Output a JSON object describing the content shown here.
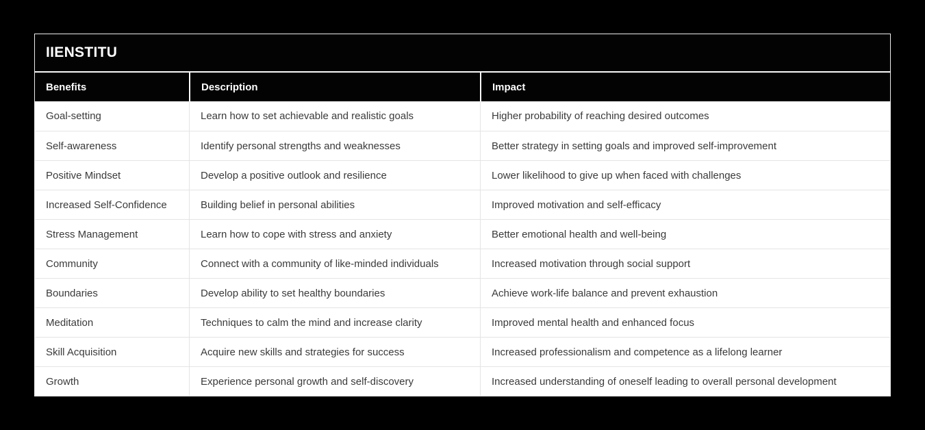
{
  "title": "IIENSTITU",
  "colors": {
    "page_background": "#000000",
    "card_background": "#ffffff",
    "header_background": "#030303",
    "header_text": "#ffffff",
    "body_text": "#3a3a3a",
    "row_divider": "#e4e4e4"
  },
  "table": {
    "columns": [
      "Benefits",
      "Description",
      "Impact"
    ],
    "rows": [
      [
        "Goal-setting",
        "Learn how to set achievable and realistic goals",
        "Higher probability of reaching desired outcomes"
      ],
      [
        "Self-awareness",
        "Identify personal strengths and weaknesses",
        "Better strategy in setting goals and improved self-improvement"
      ],
      [
        "Positive Mindset",
        "Develop a positive outlook and resilience",
        "Lower likelihood to give up when faced with challenges"
      ],
      [
        "Increased Self-Confidence",
        "Building belief in personal abilities",
        "Improved motivation and self-efficacy"
      ],
      [
        "Stress Management",
        "Learn how to cope with stress and anxiety",
        "Better emotional health and well-being"
      ],
      [
        "Community",
        "Connect with a community of like-minded individuals",
        "Increased motivation through social support"
      ],
      [
        "Boundaries",
        "Develop ability to set healthy boundaries",
        "Achieve work-life balance and prevent exhaustion"
      ],
      [
        "Meditation",
        "Techniques to calm the mind and increase clarity",
        "Improved mental health and enhanced focus"
      ],
      [
        "Skill Acquisition",
        "Acquire new skills and strategies for success",
        "Increased professionalism and competence as a lifelong learner"
      ],
      [
        "Growth",
        "Experience personal growth and self-discovery",
        "Increased understanding of oneself leading to overall personal development"
      ]
    ]
  }
}
